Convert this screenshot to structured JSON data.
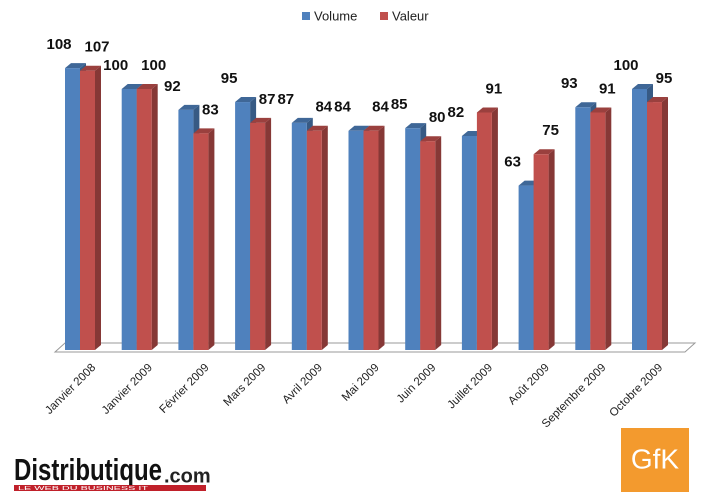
{
  "chart_data": {
    "type": "bar3d",
    "categories": [
      "Janvier 2008",
      "Janvier 2009",
      "Février 2009",
      "Mars 2009",
      "Avril 2009",
      "Mai 2009",
      "Juin 2009",
      "Juillet 2009",
      "Août 2009",
      "Septembre 2009",
      "Octobre 2009"
    ],
    "series": [
      {
        "name": "Volume",
        "color": "#4f81bd",
        "values": [
          108,
          100,
          92,
          95,
          87,
          84,
          85,
          82,
          63,
          93,
          100
        ]
      },
      {
        "name": "Valeur",
        "color": "#c0504d",
        "values": [
          107,
          100,
          83,
          87,
          84,
          84,
          80,
          91,
          75,
          91,
          95
        ]
      }
    ],
    "legend": "top"
  },
  "branding": {
    "publisher": "Distributique",
    "publisher_suffix": ".com",
    "publisher_tagline": "LE WEB DU BUSINESS IT",
    "partner": "GfK"
  }
}
